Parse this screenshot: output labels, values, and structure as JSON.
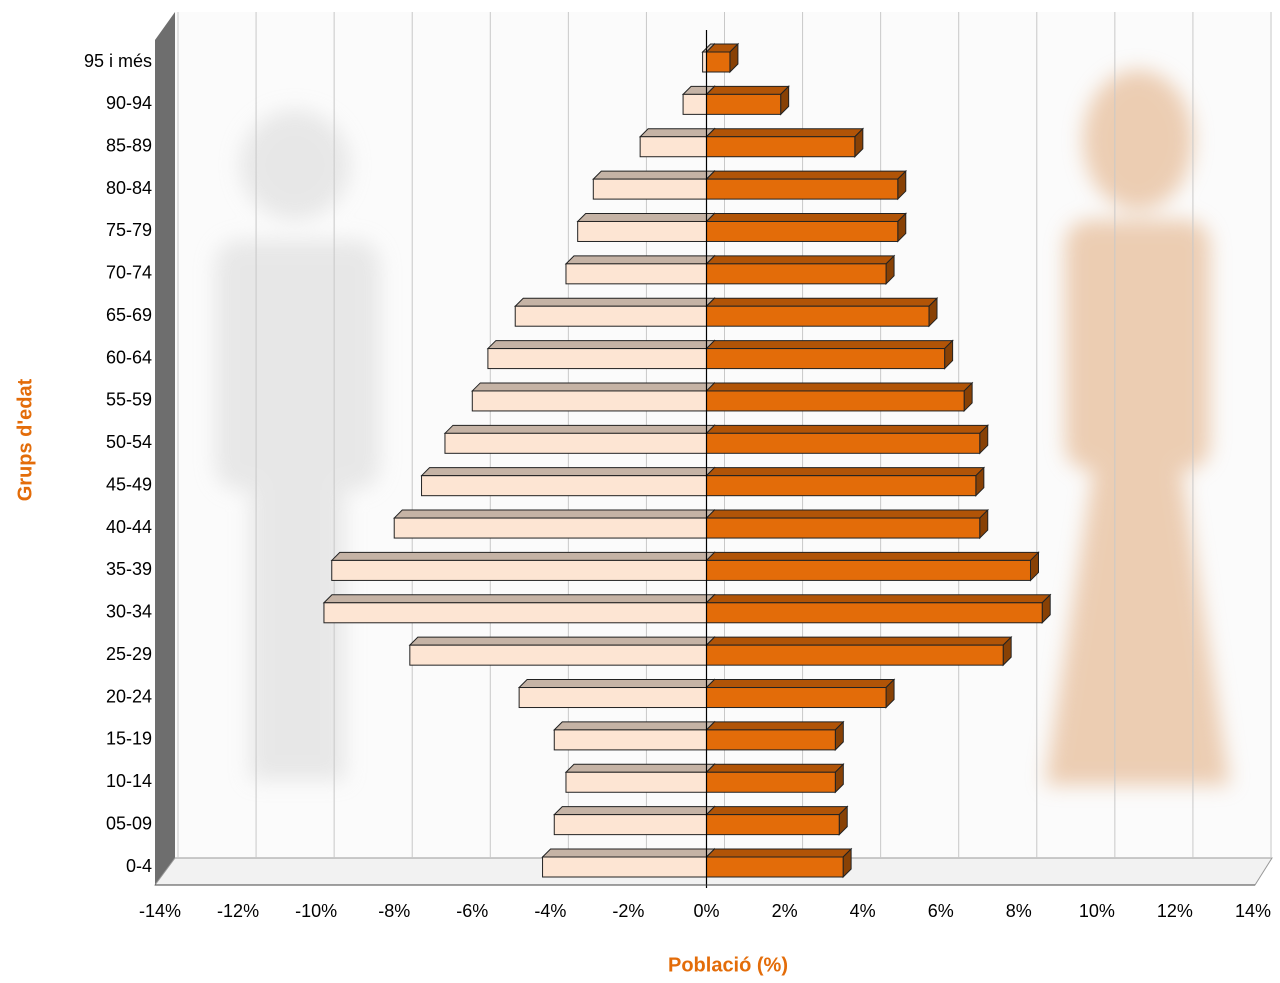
{
  "chart_data": {
    "type": "bar",
    "orientation": "horizontal",
    "xlabel": "Població (%)",
    "ylabel": "Grups d'edat",
    "categories": [
      "0-4",
      "05-09",
      "10-14",
      "15-19",
      "20-24",
      "25-29",
      "30-34",
      "35-39",
      "40-44",
      "45-49",
      "50-54",
      "55-59",
      "60-64",
      "65-69",
      "70-74",
      "75-79",
      "80-84",
      "85-89",
      "90-94",
      "95 i més"
    ],
    "series": [
      {
        "color": "#fde5d3",
        "values": [
          -4.2,
          -3.9,
          -3.6,
          -3.9,
          -4.8,
          -7.6,
          -9.8,
          -9.6,
          -8.0,
          -7.3,
          -6.7,
          -6.0,
          -5.6,
          -4.9,
          -3.6,
          -3.3,
          -2.9,
          -1.7,
          -0.6,
          -0.1
        ]
      },
      {
        "color": "#e36c09",
        "values": [
          3.5,
          3.4,
          3.3,
          3.3,
          4.6,
          7.6,
          8.6,
          8.3,
          7.0,
          6.9,
          7.0,
          6.6,
          6.1,
          5.7,
          4.6,
          4.9,
          4.9,
          3.8,
          1.9,
          0.6
        ]
      }
    ],
    "xlim": [
      -14,
      14
    ],
    "xticks": [
      {
        "value": -14,
        "label": "-14%"
      },
      {
        "value": -12,
        "label": "-12%"
      },
      {
        "value": -10,
        "label": "-10%"
      },
      {
        "value": -8,
        "label": "-8%"
      },
      {
        "value": -6,
        "label": "-6%"
      },
      {
        "value": -4,
        "label": "-4%"
      },
      {
        "value": -2,
        "label": "-2%"
      },
      {
        "value": 0,
        "label": "0%"
      },
      {
        "value": 2,
        "label": "2%"
      },
      {
        "value": 4,
        "label": "4%"
      },
      {
        "value": 6,
        "label": "6%"
      },
      {
        "value": 8,
        "label": "8%"
      },
      {
        "value": 10,
        "label": "10%"
      },
      {
        "value": 12,
        "label": "12%"
      },
      {
        "value": 14,
        "label": "14%"
      }
    ],
    "grid": true
  }
}
